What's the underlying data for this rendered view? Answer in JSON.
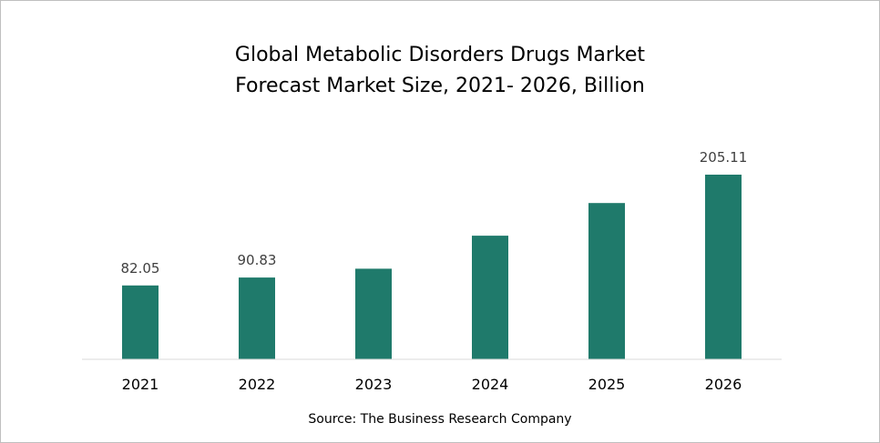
{
  "chart_data": {
    "type": "bar",
    "title_lines": [
      "Global Metabolic Disorders Drugs Market",
      "Forecast Market Size, 2021- 2026, Billion"
    ],
    "categories": [
      "2021",
      "2022",
      "2023",
      "2024",
      "2025",
      "2026"
    ],
    "values": [
      82.05,
      90.83,
      100.6,
      137.3,
      173.6,
      205.11
    ],
    "data_labels": [
      "82.05",
      "90.83",
      "",
      "",
      "",
      "205.11"
    ],
    "xlabel": "",
    "ylabel": "",
    "ylim": [
      0,
      205.11
    ],
    "grid": false,
    "legend": "none",
    "bar_color": "#1f7a6b",
    "source": "Source: The Business Research Company"
  }
}
